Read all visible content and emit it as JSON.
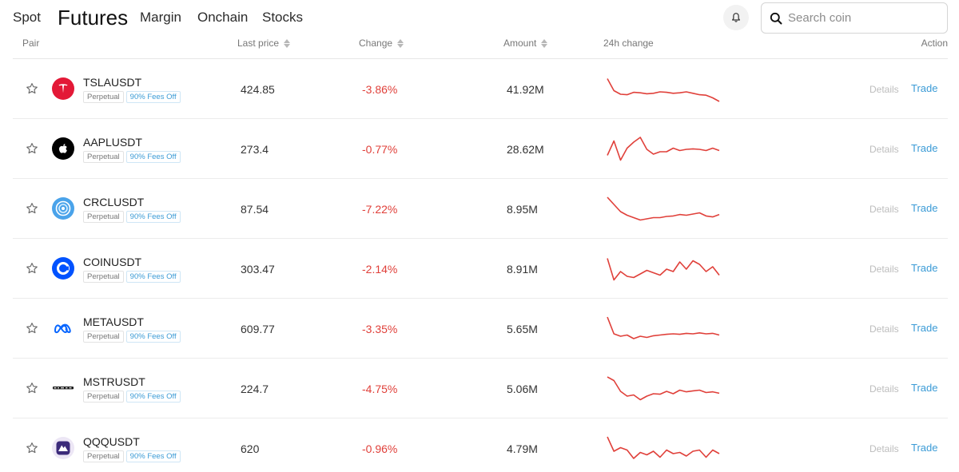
{
  "nav": {
    "tabs": [
      {
        "label": "Spot"
      },
      {
        "label": "Futures"
      },
      {
        "label": "Margin"
      },
      {
        "label": "Onchain"
      },
      {
        "label": "Stocks"
      }
    ],
    "active_tab": "Futures"
  },
  "search": {
    "placeholder": "Search coin",
    "value": ""
  },
  "table": {
    "columns": {
      "pair": "Pair",
      "last_price": "Last price",
      "change": "Change",
      "amount": "Amount",
      "spark": "24h change",
      "action": "Action"
    },
    "rows": [
      {
        "symbol": "TSLAUSDT",
        "badge_type": "Perpetual",
        "badge_fee": "90% Fees Off",
        "last_price": "424.85",
        "change": "-3.86%",
        "amount": "41.92M",
        "logo": "tesla-icon",
        "trend": [
          0.05,
          0.55,
          0.7,
          0.72,
          0.62,
          0.64,
          0.68,
          0.66,
          0.6,
          0.62,
          0.66,
          0.64,
          0.6,
          0.66,
          0.72,
          0.74,
          0.85,
          1.0
        ]
      },
      {
        "symbol": "AAPLUSDT",
        "badge_type": "Perpetual",
        "badge_fee": "90% Fees Off",
        "last_price": "273.4",
        "change": "-0.77%",
        "amount": "28.62M",
        "logo": "apple-icon",
        "trend": [
          0.75,
          0.15,
          0.95,
          0.45,
          0.2,
          0.0,
          0.5,
          0.7,
          0.6,
          0.6,
          0.45,
          0.55,
          0.5,
          0.48,
          0.5,
          0.55,
          0.45,
          0.55
        ]
      },
      {
        "symbol": "CRCLUSDT",
        "badge_type": "Perpetual",
        "badge_fee": "90% Fees Off",
        "last_price": "87.54",
        "change": "-7.22%",
        "amount": "8.95M",
        "logo": "circle-icon",
        "trend": [
          0.0,
          0.3,
          0.6,
          0.75,
          0.85,
          0.95,
          0.9,
          0.85,
          0.85,
          0.8,
          0.78,
          0.72,
          0.75,
          0.7,
          0.65,
          0.78,
          0.82,
          0.72
        ]
      },
      {
        "symbol": "COINUSDT",
        "badge_type": "Perpetual",
        "badge_fee": "90% Fees Off",
        "last_price": "303.47",
        "change": "-2.14%",
        "amount": "8.91M",
        "logo": "coinbase-icon",
        "trend": [
          0.05,
          0.95,
          0.6,
          0.8,
          0.85,
          0.7,
          0.55,
          0.65,
          0.75,
          0.5,
          0.6,
          0.2,
          0.5,
          0.15,
          0.3,
          0.6,
          0.4,
          0.75
        ]
      },
      {
        "symbol": "METAUSDT",
        "badge_type": "Perpetual",
        "badge_fee": "90% Fees Off",
        "last_price": "609.77",
        "change": "-3.35%",
        "amount": "5.65M",
        "logo": "meta-icon",
        "trend": [
          0.0,
          0.7,
          0.8,
          0.75,
          0.9,
          0.8,
          0.85,
          0.78,
          0.75,
          0.72,
          0.7,
          0.72,
          0.68,
          0.7,
          0.66,
          0.7,
          0.68,
          0.75
        ]
      },
      {
        "symbol": "MSTRUSDT",
        "badge_type": "Perpetual",
        "badge_fee": "90% Fees Off",
        "last_price": "224.7",
        "change": "-4.75%",
        "amount": "5.06M",
        "logo": "strategy-icon",
        "trend": [
          0.0,
          0.15,
          0.6,
          0.8,
          0.75,
          0.95,
          0.8,
          0.7,
          0.72,
          0.6,
          0.7,
          0.55,
          0.62,
          0.58,
          0.55,
          0.65,
          0.62,
          0.68
        ]
      },
      {
        "symbol": "QQQUSDT",
        "badge_type": "Perpetual",
        "badge_fee": "90% Fees Off",
        "last_price": "620",
        "change": "-0.96%",
        "amount": "4.79M",
        "logo": "invesco-qqq-icon",
        "trend": [
          0.0,
          0.6,
          0.45,
          0.55,
          0.9,
          0.65,
          0.75,
          0.6,
          0.85,
          0.55,
          0.7,
          0.65,
          0.8,
          0.6,
          0.55,
          0.85,
          0.55,
          0.7
        ]
      }
    ]
  },
  "actions": {
    "details_label": "Details",
    "trade_label": "Trade"
  },
  "colors": {
    "negative": "#e0403a",
    "link": "#3b9bd6",
    "muted": "#bdbdbd"
  }
}
